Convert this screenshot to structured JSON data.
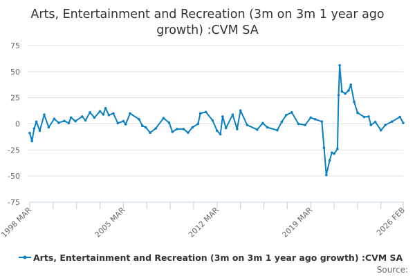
{
  "chart_data": {
    "type": "line",
    "title": [
      "Arts, Entertainment and Recreation (3m on 3m 1 year ago",
      "growth) :CVM SA"
    ],
    "xlabel": "",
    "ylabel": "",
    "ylim": [
      -75,
      75
    ],
    "yticks": [
      75,
      50,
      25,
      0,
      -25,
      -50,
      -75
    ],
    "xlim": [
      "1998 MAR",
      "2026 FEB"
    ],
    "xticks": [
      "1998 MAR",
      "2005 MAR",
      "2012 MAR",
      "2019 MAR",
      "2026 FEB"
    ],
    "grid": true,
    "legend_placement": "bottom",
    "color": "#0a7fc2",
    "series": [
      {
        "name": "Arts, Entertainment and Recreation (3m on 3m 1 year ago growth) :CVM SA",
        "x": [
          "1998 MAR",
          "1998 MAY",
          "1998 JUL",
          "1998 SEP",
          "1998 DEC",
          "1999 APR",
          "1999 AUG",
          "2000 JAN",
          "2000 MAY",
          "2000 OCT",
          "2001 FEB",
          "2001 APR",
          "2001 AUG",
          "2002 FEB",
          "2002 MAY",
          "2002 SEP",
          "2003 JAN",
          "2003 JUN",
          "2003 SEP",
          "2003 NOV",
          "2004 FEB",
          "2004 JUN",
          "2004 OCT",
          "2005 MAR",
          "2005 MAY",
          "2005 SEP",
          "2006 MAY",
          "2006 AUG",
          "2006 NOV",
          "2007 MAR",
          "2007 AUG",
          "2008 MAR",
          "2008 AUG",
          "2008 NOV",
          "2009 MAR",
          "2009 SEP",
          "2010 JAN",
          "2010 MAY",
          "2010 OCT",
          "2010 DEC",
          "2011 MAY",
          "2011 NOV",
          "2012 MAR",
          "2012 JUN",
          "2012 AUG",
          "2012 NOV",
          "2013 MAY",
          "2013 SEP",
          "2013 DEC",
          "2014 JUN",
          "2015 MAR",
          "2015 AUG",
          "2015 DEC",
          "2016 SEP",
          "2017 JAN",
          "2017 MAY",
          "2017 OCT",
          "2018 APR",
          "2018 OCT",
          "2019 MAR",
          "2019 JUL",
          "2020 JAN",
          "2020 MAR",
          "2020 MAY",
          "2020 AUG",
          "2020 OCT",
          "2020 DEC",
          "2021 MAR",
          "2021 APR",
          "2021 MAY",
          "2021 JUL",
          "2021 OCT",
          "2022 JAN",
          "2022 MAR",
          "2022 JUN",
          "2022 SEP",
          "2023 MAR",
          "2023 JUL",
          "2023 SEP",
          "2024 JAN",
          "2024 JUN",
          "2024 OCT",
          "2025 APR",
          "2025 NOV",
          "2026 FEB"
        ],
        "values": [
          -8.8,
          -16.5,
          -4.4,
          2,
          -6.6,
          8.8,
          -3.3,
          4.8,
          1,
          2.8,
          0.7,
          6,
          2.6,
          7,
          3.3,
          11,
          6,
          12,
          9,
          15,
          8.4,
          10,
          0.7,
          2.6,
          -0.4,
          10,
          4.4,
          -1.8,
          -3.3,
          -8.4,
          -4.4,
          5.5,
          1.1,
          -7.7,
          -5,
          -5,
          -8.4,
          -3.3,
          0,
          10,
          11.4,
          3.3,
          -6.6,
          -10,
          7,
          -4,
          8.8,
          -5,
          12.8,
          -1.1,
          -5.5,
          0.7,
          -3.3,
          -6.1,
          1.8,
          8.4,
          11,
          0,
          -1.1,
          6,
          4.4,
          2.2,
          -23,
          -49,
          -35,
          -27.5,
          -28.6,
          -24,
          27.5,
          56,
          31,
          29,
          32,
          37.5,
          21,
          10.6,
          6.6,
          7,
          -1.1,
          1.8,
          -6.1,
          -1.1,
          2.2,
          6.6,
          0.9
        ]
      }
    ]
  },
  "source_label": "Source:"
}
